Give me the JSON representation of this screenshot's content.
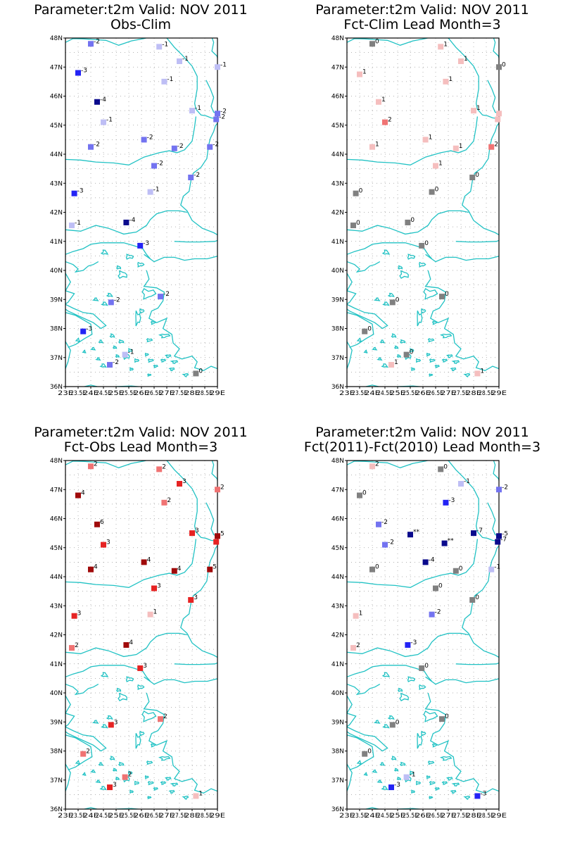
{
  "panels": [
    {
      "title": "Parameter:t2m Valid: NOV 2011",
      "subtitle": "Obs-Clim",
      "stations": [
        {
          "lon": 24.0,
          "lat": 47.8,
          "value": "-2",
          "color": "#7373f0"
        },
        {
          "lon": 26.7,
          "lat": 47.7,
          "value": "-1",
          "color": "#bebef5"
        },
        {
          "lon": 27.5,
          "lat": 47.2,
          "value": "-1",
          "color": "#bebef5"
        },
        {
          "lon": 29.0,
          "lat": 47.0,
          "value": "-1",
          "color": "#bebef5"
        },
        {
          "lon": 23.5,
          "lat": 46.8,
          "value": "-3",
          "color": "#2323f5"
        },
        {
          "lon": 26.9,
          "lat": 46.5,
          "value": "-1",
          "color": "#bebef5"
        },
        {
          "lon": 24.25,
          "lat": 45.8,
          "value": "-4",
          "color": "#0a0a8c"
        },
        {
          "lon": 28.0,
          "lat": 45.5,
          "value": "-1",
          "color": "#bebef5"
        },
        {
          "lon": 29.0,
          "lat": 45.4,
          "value": "-2",
          "color": "#7373f0"
        },
        {
          "lon": 28.95,
          "lat": 45.2,
          "value": "-2",
          "color": "#7373f0"
        },
        {
          "lon": 24.5,
          "lat": 45.1,
          "value": "-1",
          "color": "#bebef5"
        },
        {
          "lon": 26.1,
          "lat": 44.5,
          "value": "-2",
          "color": "#7373f0"
        },
        {
          "lon": 24.0,
          "lat": 44.25,
          "value": "-2",
          "color": "#7373f0"
        },
        {
          "lon": 27.3,
          "lat": 44.2,
          "value": "-2",
          "color": "#7373f0"
        },
        {
          "lon": 28.7,
          "lat": 44.25,
          "value": "-2",
          "color": "#7373f0"
        },
        {
          "lon": 26.5,
          "lat": 43.6,
          "value": "-2",
          "color": "#7373f0"
        },
        {
          "lon": 27.95,
          "lat": 43.2,
          "value": "-2",
          "color": "#7373f0"
        },
        {
          "lon": 26.35,
          "lat": 42.7,
          "value": "-1",
          "color": "#bebef5"
        },
        {
          "lon": 23.35,
          "lat": 42.65,
          "value": "-3",
          "color": "#2323f5"
        },
        {
          "lon": 25.4,
          "lat": 41.65,
          "value": "-4",
          "color": "#0a0a8c"
        },
        {
          "lon": 23.25,
          "lat": 41.55,
          "value": "-1",
          "color": "#bebef5"
        },
        {
          "lon": 25.95,
          "lat": 40.85,
          "value": "-3",
          "color": "#2323f5"
        },
        {
          "lon": 26.75,
          "lat": 39.1,
          "value": "-2",
          "color": "#7373f0"
        },
        {
          "lon": 24.8,
          "lat": 38.9,
          "value": "-2",
          "color": "#7373f0"
        },
        {
          "lon": 23.7,
          "lat": 37.9,
          "value": "-3",
          "color": "#2323f5"
        },
        {
          "lon": 25.35,
          "lat": 37.1,
          "value": "-1",
          "color": "#bebef5"
        },
        {
          "lon": 24.75,
          "lat": 36.75,
          "value": "-2",
          "color": "#7373f0"
        },
        {
          "lon": 28.15,
          "lat": 36.45,
          "value": "0",
          "color": "#808080"
        }
      ]
    },
    {
      "title": "Parameter:t2m Valid: NOV 2011",
      "subtitle": "Fct-Clim Lead Month=3",
      "stations": [
        {
          "lon": 24.0,
          "lat": 47.8,
          "value": "0",
          "color": "#808080"
        },
        {
          "lon": 26.7,
          "lat": 47.7,
          "value": "1",
          "color": "#f5bebe"
        },
        {
          "lon": 27.5,
          "lat": 47.2,
          "value": "1",
          "color": "#f5bebe"
        },
        {
          "lon": 29.0,
          "lat": 47.0,
          "value": "0",
          "color": "#808080"
        },
        {
          "lon": 23.5,
          "lat": 46.75,
          "value": "1",
          "color": "#f5bebe"
        },
        {
          "lon": 26.9,
          "lat": 46.5,
          "value": "1",
          "color": "#f5bebe"
        },
        {
          "lon": 24.25,
          "lat": 45.8,
          "value": "1",
          "color": "#f5bebe"
        },
        {
          "lon": 28.0,
          "lat": 45.5,
          "value": "1",
          "color": "#f5bebe"
        },
        {
          "lon": 29.0,
          "lat": 45.4,
          "value": "",
          "color": "#f5bebe"
        },
        {
          "lon": 28.95,
          "lat": 45.2,
          "value": "",
          "color": "#f5bebe"
        },
        {
          "lon": 24.5,
          "lat": 45.1,
          "value": "2",
          "color": "#f07373"
        },
        {
          "lon": 26.1,
          "lat": 44.5,
          "value": "1",
          "color": "#f5bebe"
        },
        {
          "lon": 24.0,
          "lat": 44.25,
          "value": "1",
          "color": "#f5bebe"
        },
        {
          "lon": 27.3,
          "lat": 44.2,
          "value": "1",
          "color": "#f5bebe"
        },
        {
          "lon": 28.7,
          "lat": 44.25,
          "value": "2",
          "color": "#f07373"
        },
        {
          "lon": 26.5,
          "lat": 43.6,
          "value": "1",
          "color": "#f5bebe"
        },
        {
          "lon": 27.95,
          "lat": 43.2,
          "value": "0",
          "color": "#808080"
        },
        {
          "lon": 26.35,
          "lat": 42.7,
          "value": "0",
          "color": "#808080"
        },
        {
          "lon": 23.35,
          "lat": 42.65,
          "value": "0",
          "color": "#808080"
        },
        {
          "lon": 25.4,
          "lat": 41.65,
          "value": "0",
          "color": "#808080"
        },
        {
          "lon": 23.25,
          "lat": 41.55,
          "value": "0",
          "color": "#808080"
        },
        {
          "lon": 25.95,
          "lat": 40.85,
          "value": "0",
          "color": "#808080"
        },
        {
          "lon": 26.75,
          "lat": 39.1,
          "value": "0",
          "color": "#808080"
        },
        {
          "lon": 24.8,
          "lat": 38.9,
          "value": "0",
          "color": "#808080"
        },
        {
          "lon": 23.7,
          "lat": 37.9,
          "value": "0",
          "color": "#808080"
        },
        {
          "lon": 25.35,
          "lat": 37.1,
          "value": "0",
          "color": "#808080"
        },
        {
          "lon": 24.75,
          "lat": 36.75,
          "value": "1",
          "color": "#f5bebe"
        },
        {
          "lon": 28.15,
          "lat": 36.45,
          "value": "1",
          "color": "#f5bebe"
        }
      ]
    },
    {
      "title": "Parameter:t2m Valid: NOV 2011",
      "subtitle": "Fct-Obs Lead Month=3",
      "stations": [
        {
          "lon": 24.0,
          "lat": 47.8,
          "value": "2",
          "color": "#f07373"
        },
        {
          "lon": 26.7,
          "lat": 47.7,
          "value": "2",
          "color": "#f07373"
        },
        {
          "lon": 27.5,
          "lat": 47.2,
          "value": "3",
          "color": "#e62323"
        },
        {
          "lon": 29.0,
          "lat": 47.0,
          "value": "2",
          "color": "#f07373"
        },
        {
          "lon": 23.5,
          "lat": 46.8,
          "value": "4",
          "color": "#a00a0a"
        },
        {
          "lon": 26.9,
          "lat": 46.55,
          "value": "2",
          "color": "#f07373"
        },
        {
          "lon": 24.25,
          "lat": 45.8,
          "value": "6",
          "color": "#a00a0a"
        },
        {
          "lon": 28.0,
          "lat": 45.5,
          "value": "3",
          "color": "#e62323"
        },
        {
          "lon": 29.0,
          "lat": 45.4,
          "value": "5",
          "color": "#a00a0a"
        },
        {
          "lon": 28.95,
          "lat": 45.2,
          "value": "",
          "color": "#e62323"
        },
        {
          "lon": 24.5,
          "lat": 45.1,
          "value": "3",
          "color": "#e62323"
        },
        {
          "lon": 26.1,
          "lat": 44.5,
          "value": "4",
          "color": "#a00a0a"
        },
        {
          "lon": 24.0,
          "lat": 44.25,
          "value": "4",
          "color": "#a00a0a"
        },
        {
          "lon": 27.3,
          "lat": 44.2,
          "value": "4",
          "color": "#a00a0a"
        },
        {
          "lon": 28.7,
          "lat": 44.25,
          "value": "5",
          "color": "#a00a0a"
        },
        {
          "lon": 26.5,
          "lat": 43.6,
          "value": "3",
          "color": "#e62323"
        },
        {
          "lon": 27.95,
          "lat": 43.2,
          "value": "3",
          "color": "#e62323"
        },
        {
          "lon": 26.35,
          "lat": 42.7,
          "value": "1",
          "color": "#f5bebe"
        },
        {
          "lon": 23.35,
          "lat": 42.65,
          "value": "3",
          "color": "#e62323"
        },
        {
          "lon": 25.4,
          "lat": 41.65,
          "value": "4",
          "color": "#a00a0a"
        },
        {
          "lon": 23.25,
          "lat": 41.55,
          "value": "2",
          "color": "#f07373"
        },
        {
          "lon": 25.95,
          "lat": 40.85,
          "value": "3",
          "color": "#e62323"
        },
        {
          "lon": 26.75,
          "lat": 39.1,
          "value": "2",
          "color": "#f07373"
        },
        {
          "lon": 24.8,
          "lat": 38.9,
          "value": "3",
          "color": "#e62323"
        },
        {
          "lon": 23.7,
          "lat": 37.9,
          "value": "2",
          "color": "#f07373"
        },
        {
          "lon": 25.35,
          "lat": 37.1,
          "value": "2",
          "color": "#f07373"
        },
        {
          "lon": 24.75,
          "lat": 36.75,
          "value": "3",
          "color": "#e62323"
        },
        {
          "lon": 28.15,
          "lat": 36.45,
          "value": "1",
          "color": "#f5bebe"
        }
      ]
    },
    {
      "title": "Parameter:t2m Valid: NOV 2011",
      "subtitle": "Fct(2011)-Fct(2010) Lead Month=3",
      "stations": [
        {
          "lon": 24.0,
          "lat": 47.8,
          "value": "2",
          "color": "#f5bebe"
        },
        {
          "lon": 26.7,
          "lat": 47.7,
          "value": "0",
          "color": "#808080"
        },
        {
          "lon": 27.5,
          "lat": 47.2,
          "value": "-1",
          "color": "#bebef5"
        },
        {
          "lon": 29.0,
          "lat": 47.0,
          "value": "-2",
          "color": "#7373f0"
        },
        {
          "lon": 23.5,
          "lat": 46.8,
          "value": "0",
          "color": "#808080"
        },
        {
          "lon": 26.9,
          "lat": 46.55,
          "value": "-3",
          "color": "#2323f5"
        },
        {
          "lon": 24.25,
          "lat": 45.8,
          "value": "-2",
          "color": "#7373f0"
        },
        {
          "lon": 25.5,
          "lat": 45.45,
          "value": "**",
          "color": "#0a0a8c"
        },
        {
          "lon": 28.0,
          "lat": 45.5,
          "value": "-7",
          "color": "#0a0a8c"
        },
        {
          "lon": 29.0,
          "lat": 45.4,
          "value": "-5",
          "color": "#0a0a8c"
        },
        {
          "lon": 28.95,
          "lat": 45.2,
          "value": "-7",
          "color": "#0a0a8c"
        },
        {
          "lon": 24.5,
          "lat": 45.1,
          "value": "-2",
          "color": "#7373f0"
        },
        {
          "lon": 26.85,
          "lat": 45.15,
          "value": "**",
          "color": "#0a0a8c"
        },
        {
          "lon": 26.1,
          "lat": 44.5,
          "value": "-4",
          "color": "#0a0a8c"
        },
        {
          "lon": 24.0,
          "lat": 44.25,
          "value": "0",
          "color": "#808080"
        },
        {
          "lon": 27.3,
          "lat": 44.2,
          "value": "0",
          "color": "#808080"
        },
        {
          "lon": 28.7,
          "lat": 44.25,
          "value": "-1",
          "color": "#bebef5"
        },
        {
          "lon": 26.5,
          "lat": 43.6,
          "value": "0",
          "color": "#808080"
        },
        {
          "lon": 27.95,
          "lat": 43.2,
          "value": "0",
          "color": "#808080"
        },
        {
          "lon": 26.35,
          "lat": 42.7,
          "value": "-2",
          "color": "#7373f0"
        },
        {
          "lon": 23.35,
          "lat": 42.65,
          "value": "1",
          "color": "#f5bebe"
        },
        {
          "lon": 25.4,
          "lat": 41.65,
          "value": "-3",
          "color": "#2323f5"
        },
        {
          "lon": 23.25,
          "lat": 41.55,
          "value": "2",
          "color": "#f5bebe"
        },
        {
          "lon": 25.95,
          "lat": 40.85,
          "value": "0",
          "color": "#808080"
        },
        {
          "lon": 26.75,
          "lat": 39.1,
          "value": "0",
          "color": "#808080"
        },
        {
          "lon": 24.8,
          "lat": 38.9,
          "value": "0",
          "color": "#808080"
        },
        {
          "lon": 23.7,
          "lat": 37.9,
          "value": "0",
          "color": "#808080"
        },
        {
          "lon": 25.35,
          "lat": 37.1,
          "value": "-1",
          "color": "#bebef5"
        },
        {
          "lon": 24.75,
          "lat": 36.75,
          "value": "-3",
          "color": "#2323f5"
        },
        {
          "lon": 28.15,
          "lat": 36.45,
          "value": "-3",
          "color": "#2323f5"
        }
      ]
    }
  ],
  "lat_ticks": [
    "48N",
    "47N",
    "46N",
    "45N",
    "44N",
    "43N",
    "42N",
    "41N",
    "40N",
    "39N",
    "38N",
    "37N",
    "36N"
  ],
  "lon_ticks": [
    "23E",
    "23.5E",
    "24E",
    "24.5E",
    "25E",
    "25.5E",
    "26E",
    "26.5E",
    "27E",
    "27.5E",
    "28E",
    "28.5E",
    "29E"
  ],
  "colors": {
    "coastline": "#21c2c4",
    "grid": "#9a9a9a"
  }
}
